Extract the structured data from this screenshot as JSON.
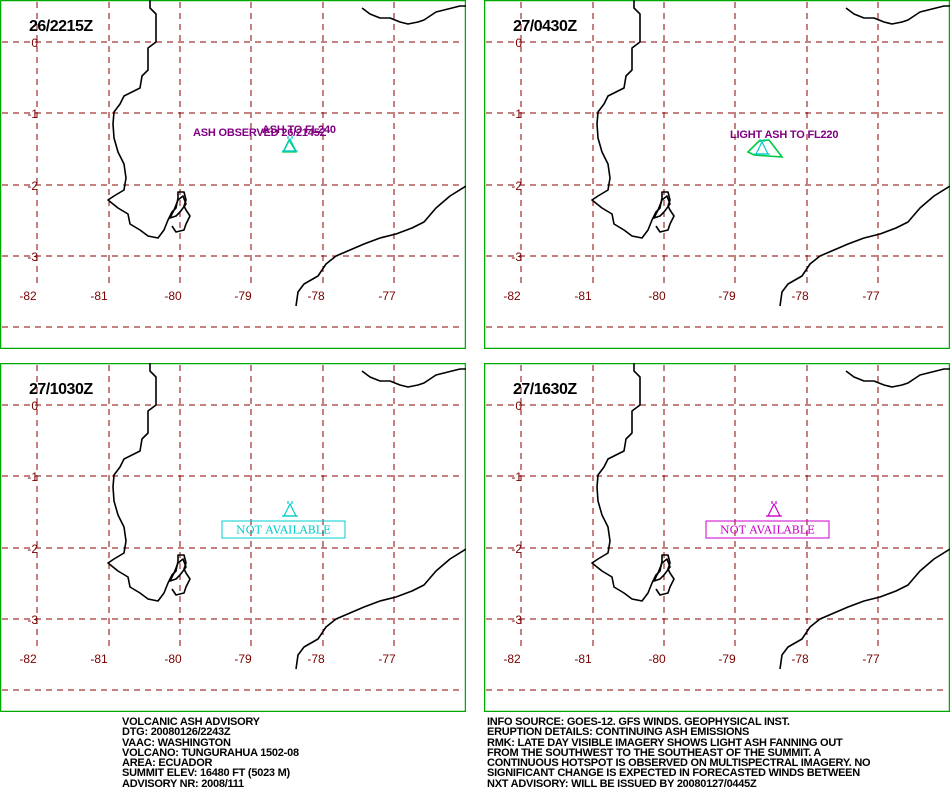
{
  "colors": {
    "frame": "#00aa00",
    "grid": "#8b0000",
    "ticks": "#7a0000",
    "coast": "#000000",
    "ash_observed": "#800080",
    "ash_polygon": "#00cc44",
    "volcano_icon": "#00cccc",
    "not_available_cyan": "#00cccc",
    "not_available_magenta": "#cc00cc"
  },
  "axes": {
    "lon_labels": [
      "-82",
      "-81",
      "-80",
      "-79",
      "-78",
      "-77"
    ],
    "lat_labels": [
      "0",
      "-1",
      "-2",
      "-3"
    ]
  },
  "panels": [
    {
      "time": "26/2215Z",
      "overlay": {
        "type": "observed",
        "label": "ASH OBSERVED 26/2145Z",
        "overlap_label": "ASH TO FL240"
      }
    },
    {
      "time": "27/0430Z",
      "overlay": {
        "type": "forecast",
        "label": "LIGHT ASH TO FL220"
      }
    },
    {
      "time": "27/1030Z",
      "overlay": {
        "type": "not_available",
        "label": "NOT AVAILABLE",
        "color": "cyan"
      }
    },
    {
      "time": "27/1630Z",
      "overlay": {
        "type": "not_available",
        "label": "NOT AVAILABLE",
        "color": "magenta"
      }
    }
  ],
  "advisory_left": [
    "VOLCANIC ASH ADVISORY",
    "DTG: 20080126/2243Z",
    "VAAC: WASHINGTON",
    "VOLCANO: TUNGURAHUA 1502-08",
    "AREA: ECUADOR",
    "SUMMIT ELEV: 16480 FT (5023 M)",
    "ADVISORY NR: 2008/111"
  ],
  "advisory_right": [
    "INFO SOURCE: GOES-12. GFS WINDS. GEOPHYSICAL INST.",
    "ERUPTION DETAILS: CONTINUING ASH EMISSIONS",
    "RMK: LATE DAY VISIBLE IMAGERY SHOWS LIGHT ASH FANNING OUT",
    "FROM THE SOUTHWEST TO THE SOUTHEAST OF THE SUMMIT. A",
    "CONTINUOUS HOTSPOT IS OBSERVED ON MULTISPECTRAL IMAGERY. NO",
    "SIGNIFICANT CHANGE IS EXPECTED IN FORECASTED WINDS BETWEEN",
    "NXT ADVISORY: WILL BE ISSUED BY 20080127/0445Z"
  ]
}
